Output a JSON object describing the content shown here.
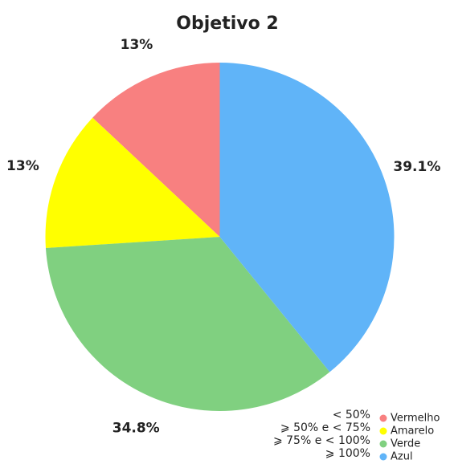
{
  "chart_data": {
    "type": "pie",
    "title": "Objetivo 2",
    "categories": [
      "Vermelho",
      "Amarelo",
      "Verde",
      "Azul"
    ],
    "legend_notes": [
      "< 50%",
      "⩾ 50% e < 75%",
      "⩾ 75% e < 100%",
      "⩾ 100%"
    ],
    "values": [
      13,
      13,
      34.8,
      39.1
    ],
    "value_labels": [
      "13%",
      "13%",
      "34.8%",
      "39.1%"
    ],
    "colors": [
      "#f88080",
      "#ffff00",
      "#80d080",
      "#60b4f8"
    ],
    "legend": "bottom-right"
  }
}
